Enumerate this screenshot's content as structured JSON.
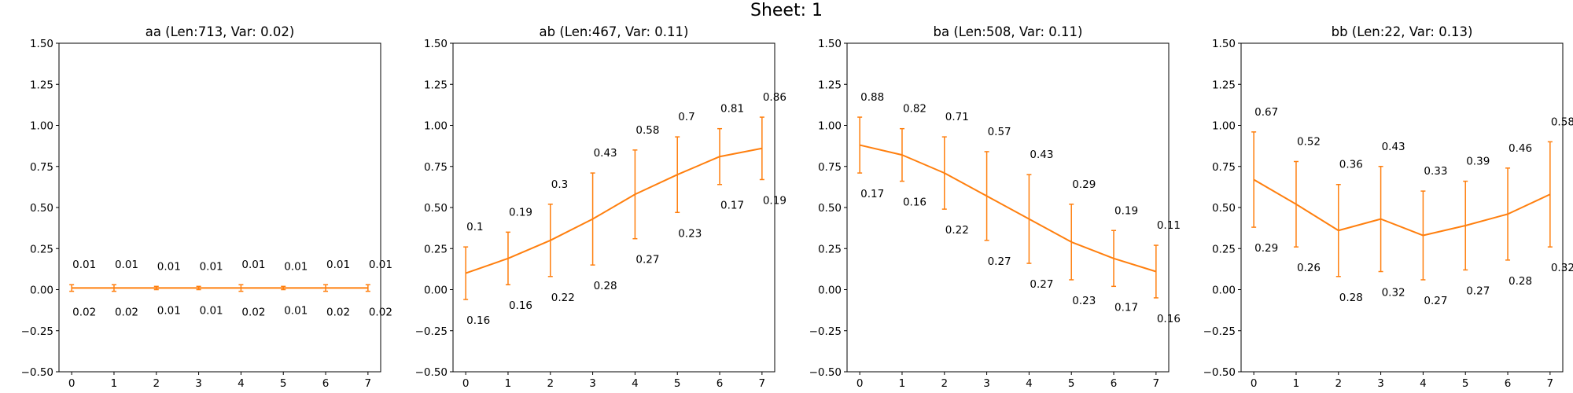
{
  "figure": {
    "suptitle": "Sheet: 1"
  },
  "colors": {
    "series": "#ff7f0e",
    "axes": "#000000",
    "background": "#ffffff"
  },
  "chart_data": [
    {
      "type": "line",
      "title": "aa (Len:713, Var: 0.02)",
      "x": [
        0,
        1,
        2,
        3,
        4,
        5,
        6,
        7
      ],
      "y": [
        0.01,
        0.01,
        0.01,
        0.01,
        0.01,
        0.01,
        0.01,
        0.01
      ],
      "error": [
        0.02,
        0.02,
        0.01,
        0.01,
        0.02,
        0.01,
        0.02,
        0.02
      ],
      "xlim": [
        -0.3,
        7.3
      ],
      "ylim": [
        -0.5,
        1.5
      ],
      "xticks": [
        "0",
        "1",
        "2",
        "3",
        "4",
        "5",
        "6",
        "7"
      ],
      "yticks": [
        "−0.50",
        "−0.25",
        "0.00",
        "0.25",
        "0.50",
        "0.75",
        "1.00",
        "1.25",
        "1.50"
      ],
      "legend": "none",
      "grid": false
    },
    {
      "type": "line",
      "title": "ab (Len:467, Var: 0.11)",
      "x": [
        0,
        1,
        2,
        3,
        4,
        5,
        6,
        7
      ],
      "y": [
        0.1,
        0.19,
        0.3,
        0.43,
        0.58,
        0.7,
        0.81,
        0.86
      ],
      "error": [
        0.16,
        0.16,
        0.22,
        0.28,
        0.27,
        0.23,
        0.17,
        0.19
      ],
      "xlim": [
        -0.3,
        7.3
      ],
      "ylim": [
        -0.5,
        1.5
      ],
      "xticks": [
        "0",
        "1",
        "2",
        "3",
        "4",
        "5",
        "6",
        "7"
      ],
      "yticks": [
        "−0.50",
        "−0.25",
        "0.00",
        "0.25",
        "0.50",
        "0.75",
        "1.00",
        "1.25",
        "1.50"
      ],
      "legend": "none",
      "grid": false
    },
    {
      "type": "line",
      "title": "ba (Len:508, Var: 0.11)",
      "x": [
        0,
        1,
        2,
        3,
        4,
        5,
        6,
        7
      ],
      "y": [
        0.88,
        0.82,
        0.71,
        0.57,
        0.43,
        0.29,
        0.19,
        0.11
      ],
      "error": [
        0.17,
        0.16,
        0.22,
        0.27,
        0.27,
        0.23,
        0.17,
        0.16
      ],
      "xlim": [
        -0.3,
        7.3
      ],
      "ylim": [
        -0.5,
        1.5
      ],
      "xticks": [
        "0",
        "1",
        "2",
        "3",
        "4",
        "5",
        "6",
        "7"
      ],
      "yticks": [
        "−0.50",
        "−0.25",
        "0.00",
        "0.25",
        "0.50",
        "0.75",
        "1.00",
        "1.25",
        "1.50"
      ],
      "legend": "none",
      "grid": false
    },
    {
      "type": "line",
      "title": "bb (Len:22, Var: 0.13)",
      "x": [
        0,
        1,
        2,
        3,
        4,
        5,
        6,
        7
      ],
      "y": [
        0.67,
        0.52,
        0.36,
        0.43,
        0.33,
        0.39,
        0.46,
        0.58
      ],
      "error": [
        0.29,
        0.26,
        0.28,
        0.32,
        0.27,
        0.27,
        0.28,
        0.32
      ],
      "xlim": [
        -0.3,
        7.3
      ],
      "ylim": [
        -0.5,
        1.5
      ],
      "xticks": [
        "0",
        "1",
        "2",
        "3",
        "4",
        "5",
        "6",
        "7"
      ],
      "yticks": [
        "−0.50",
        "−0.25",
        "0.00",
        "0.25",
        "0.50",
        "0.75",
        "1.00",
        "1.25",
        "1.50"
      ],
      "legend": "none",
      "grid": false
    }
  ]
}
